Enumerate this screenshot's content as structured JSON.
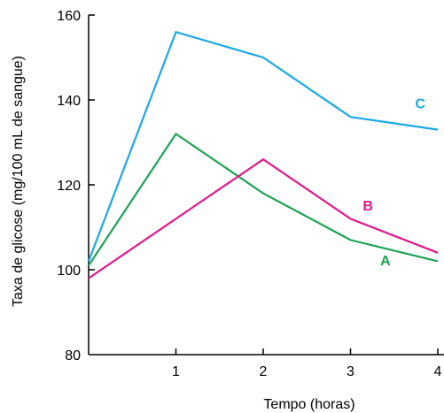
{
  "chart_data": {
    "type": "line",
    "title": "",
    "xlabel": "Tempo (horas)",
    "ylabel": "Taxa de glicose (mg/100 mL de sangue)",
    "xlim": [
      0,
      4
    ],
    "ylim": [
      80,
      160
    ],
    "x_ticks": [
      1,
      2,
      3,
      4
    ],
    "y_ticks": [
      80,
      100,
      120,
      140,
      160
    ],
    "grid": false,
    "series": [
      {
        "name": "A",
        "color": "#1aa352",
        "x": [
          0,
          1,
          2,
          3,
          4
        ],
        "y": [
          101,
          132,
          118,
          107,
          102
        ]
      },
      {
        "name": "B",
        "color": "#e0188c",
        "x": [
          0,
          1,
          2,
          3,
          4
        ],
        "y": [
          98,
          112,
          126,
          112,
          104
        ]
      },
      {
        "name": "C",
        "color": "#1aa9e6",
        "x": [
          0,
          1,
          2,
          3,
          4
        ],
        "y": [
          102,
          156,
          150,
          136,
          133
        ]
      }
    ]
  }
}
